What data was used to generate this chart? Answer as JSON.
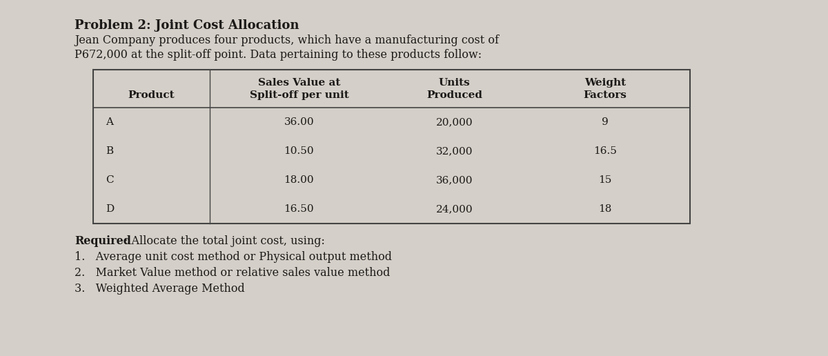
{
  "background_color": "#d4cfc8",
  "title_bold": "Problem 2: Joint Cost Allocation",
  "intro_line1": "Jean Company produces four products, which have a manufacturing cost of",
  "intro_line2": "P672,000 at the split-off point. Data pertaining to these products follow:",
  "col_headers_line1": [
    "",
    "Sales Value at",
    "Units",
    "Weight"
  ],
  "col_headers_line2": [
    "Product",
    "Split-off per unit",
    "Produced",
    "Factors"
  ],
  "rows": [
    [
      "A",
      "36.00",
      "20,000",
      "9"
    ],
    [
      "B",
      "10.50",
      "32,000",
      "16.5"
    ],
    [
      "C",
      "18.00",
      "36,000",
      "15"
    ],
    [
      "D",
      "16.50",
      "24,000",
      "18"
    ]
  ],
  "required_label": "Required",
  "required_rest": ": Allocate the total joint cost, using:",
  "items": [
    "Average unit cost method or Physical output method",
    "Market Value method or relative sales value method",
    "Weighted Average Method"
  ],
  "text_color": "#1c1a18",
  "line_color": "#444444",
  "title_fontsize": 13,
  "body_fontsize": 11.5,
  "table_fontsize": 11.0
}
